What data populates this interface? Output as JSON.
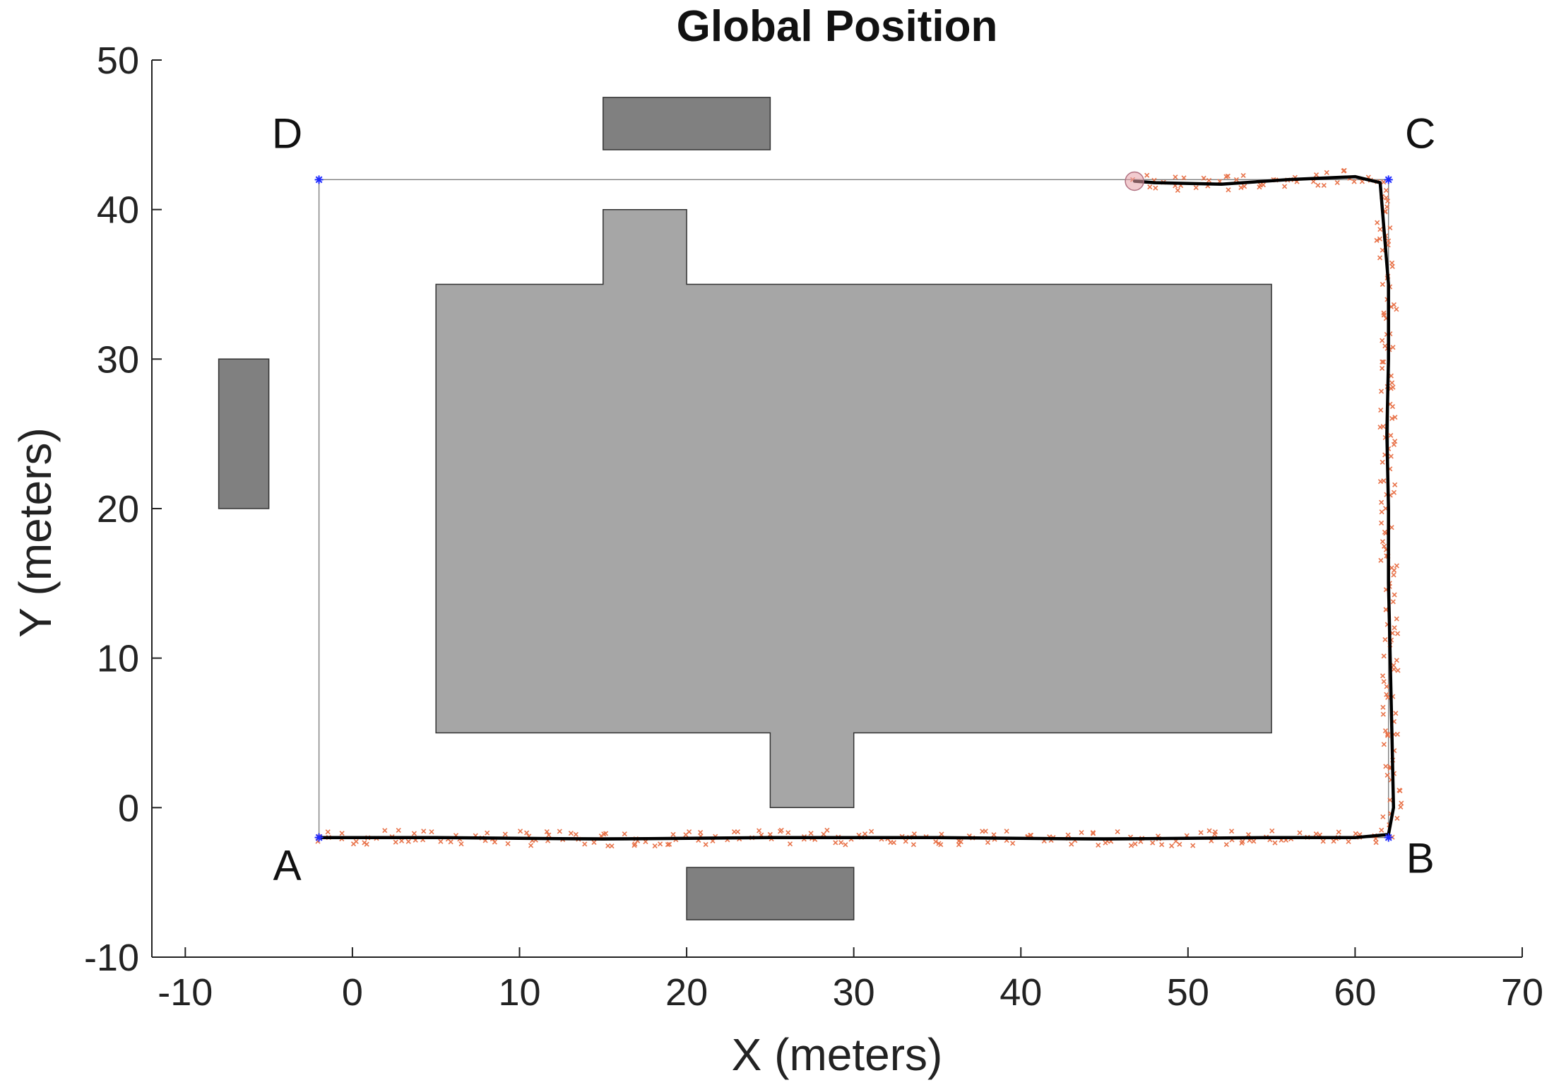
{
  "chart_data": {
    "type": "line",
    "title": "Global Position",
    "xlabel": "X (meters)",
    "ylabel": "Y (meters)",
    "xlim": [
      -12,
      70
    ],
    "ylim": [
      -10,
      50
    ],
    "xticks": [
      -10,
      0,
      10,
      20,
      30,
      40,
      50,
      60,
      70
    ],
    "yticks": [
      -10,
      0,
      10,
      20,
      30,
      40,
      50
    ],
    "grid": false,
    "colors": {
      "building": "#a6a6a6",
      "obstacle": "#808080",
      "reference": "#7f7f7f",
      "estimate": "#000000",
      "measurement": "#e8734a",
      "waypoint": "#1f2bff",
      "start": "#e8a0a8"
    },
    "corner_labels": [
      {
        "text": "A",
        "x": -2,
        "y": -2
      },
      {
        "text": "B",
        "x": 62,
        "y": -2
      },
      {
        "text": "C",
        "x": 62,
        "y": 42
      },
      {
        "text": "D",
        "x": -2,
        "y": 42
      }
    ],
    "reference_path": {
      "x": [
        -2,
        62,
        62,
        -2,
        -2
      ],
      "y": [
        -2,
        -2,
        42,
        42,
        -2
      ]
    },
    "waypoints": {
      "x": [
        -2,
        62,
        62,
        -2
      ],
      "y": [
        -2,
        -2,
        42,
        42
      ]
    },
    "start_point": {
      "x": 46.8,
      "y": 41.9
    },
    "main_building": {
      "x": [
        5,
        15,
        15,
        20,
        20,
        55,
        55,
        30,
        30,
        25,
        25,
        5,
        5
      ],
      "y": [
        35,
        35,
        40,
        40,
        35,
        35,
        5,
        5,
        0,
        0,
        5,
        5,
        35
      ]
    },
    "obstacles": [
      {
        "x": [
          15,
          25,
          25,
          15
        ],
        "y": [
          44,
          44,
          47.5,
          47.5
        ]
      },
      {
        "x": [
          -8,
          -5,
          -5,
          -8
        ],
        "y": [
          20,
          20,
          30,
          30
        ]
      },
      {
        "x": [
          20,
          30,
          30,
          20
        ],
        "y": [
          -7.5,
          -7.5,
          -4,
          -4
        ]
      }
    ],
    "estimated_path": {
      "x": [
        -2,
        5,
        15,
        25,
        35,
        45,
        55,
        60,
        62,
        62.3,
        62.2,
        62.1,
        62.0,
        62.0,
        61.9,
        62.0,
        62.0,
        61.5,
        60,
        56,
        52,
        48,
        46.8
      ],
      "y": [
        -2,
        -2,
        -2.1,
        -2,
        -2,
        -2.1,
        -2,
        -2,
        -1.8,
        0,
        5,
        10,
        15,
        20,
        25,
        30,
        35,
        41.8,
        42.2,
        42,
        41.7,
        41.8,
        41.9
      ]
    }
  }
}
